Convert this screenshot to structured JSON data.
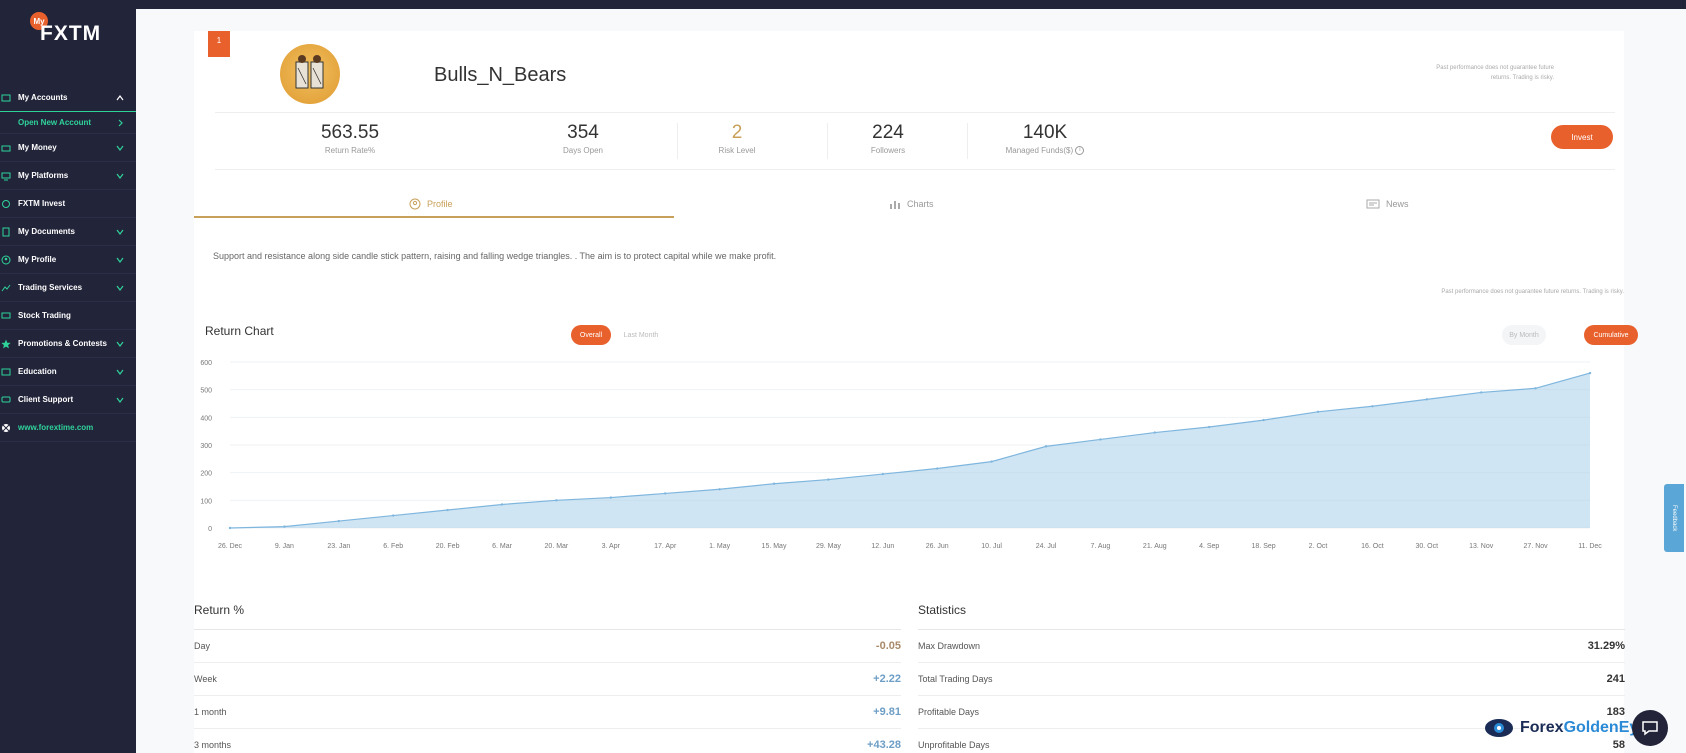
{
  "sidebar": {
    "logo_my": "My",
    "logo_text": "FXTM",
    "items": [
      {
        "label": "My Accounts",
        "icon": "accounts-icon"
      },
      {
        "label": "My Money",
        "icon": "money-icon"
      },
      {
        "label": "My Platforms",
        "icon": "platforms-icon"
      },
      {
        "label": "FXTM Invest",
        "icon": "invest-icon"
      },
      {
        "label": "My Documents",
        "icon": "documents-icon"
      },
      {
        "label": "My Profile",
        "icon": "profile-icon"
      },
      {
        "label": "Trading Services",
        "icon": "trading-icon"
      },
      {
        "label": "Stock Trading",
        "icon": "stock-icon"
      },
      {
        "label": "Promotions & Contests",
        "icon": "star-icon"
      },
      {
        "label": "Education",
        "icon": "education-icon"
      },
      {
        "label": "Client Support",
        "icon": "support-icon"
      },
      {
        "label": "www.forextime.com",
        "icon": "globe-icon"
      }
    ],
    "sub_item": "Open New Account"
  },
  "profile": {
    "rank": "1",
    "name": "Bulls_N_Bears",
    "disclaimer": "Past performance does not guarantee future returns. Trading is risky.",
    "stats": {
      "return_rate": {
        "value": "563.55",
        "label": "Return Rate%"
      },
      "days_open": {
        "value": "354",
        "label": "Days Open"
      },
      "risk_level": {
        "value": "2",
        "label": "Risk Level"
      },
      "followers": {
        "value": "224",
        "label": "Followers"
      },
      "managed_funds": {
        "value": "140K",
        "label": "Managed Funds($)"
      }
    },
    "invest_label": "Invest"
  },
  "tabs": {
    "profile": "Profile",
    "charts": "Charts",
    "news": "News"
  },
  "description": "Support and resistance along side candle stick pattern, raising and falling wedge triangles. . The aim is to protect capital while we make profit.",
  "disclaimer_mid": "Past performance does not guarantee future returns. Trading is risky.",
  "chart": {
    "title": "Return Chart",
    "toggle_overall": "Overall",
    "toggle_last_month": "Last Month",
    "toggle_by_month": "By Month",
    "toggle_cumulative": "Cumulative"
  },
  "chart_data": {
    "type": "area",
    "title": "Return Chart",
    "ylim": [
      0,
      600
    ],
    "yticks": [
      0,
      100,
      200,
      300,
      400,
      500,
      600
    ],
    "x": [
      "26. Dec",
      "9. Jan",
      "23. Jan",
      "6. Feb",
      "20. Feb",
      "6. Mar",
      "20. Mar",
      "3. Apr",
      "17. Apr",
      "1. May",
      "15. May",
      "29. May",
      "12. Jun",
      "26. Jun",
      "10. Jul",
      "24. Jul",
      "7. Aug",
      "21. Aug",
      "4. Sep",
      "18. Sep",
      "2. Oct",
      "16. Oct",
      "30. Oct",
      "13. Nov",
      "27. Nov",
      "11. Dec"
    ],
    "series": [
      {
        "values": [
          0,
          5,
          25,
          45,
          65,
          85,
          100,
          110,
          125,
          140,
          160,
          175,
          195,
          215,
          240,
          295,
          320,
          345,
          365,
          390,
          420,
          440,
          465,
          490,
          505,
          560
        ]
      }
    ],
    "grid": true
  },
  "returns": {
    "title": "Return %",
    "rows": [
      {
        "label": "Day",
        "value": "-0.05"
      },
      {
        "label": "Week",
        "value": "+2.22"
      },
      {
        "label": "1 month",
        "value": "+9.81"
      },
      {
        "label": "3 months",
        "value": "+43.28"
      }
    ]
  },
  "statistics": {
    "title": "Statistics",
    "rows": [
      {
        "label": "Max Drawdown",
        "value": "31.29%"
      },
      {
        "label": "Total Trading Days",
        "value": "241"
      },
      {
        "label": "Profitable Days",
        "value": "183"
      },
      {
        "label": "Unprofitable Days",
        "value": "58"
      }
    ]
  },
  "feedback": "Feedback",
  "brand": {
    "part1": "Forex",
    "part2": "GoldenEye"
  },
  "colors": {
    "accent": "#e8602c",
    "sidebar_bg": "#22243a",
    "nav_active": "#2fd39a",
    "tab_active": "#c8a05a",
    "chart_fill": "#a9cfea"
  }
}
